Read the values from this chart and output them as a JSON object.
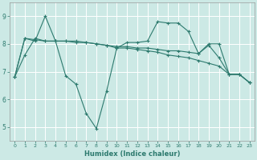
{
  "background_color": "#cce9e5",
  "grid_color": "#ffffff",
  "line_color": "#2d7a6e",
  "xlabel": "Humidex (Indice chaleur)",
  "xlim": [
    -0.5,
    23.5
  ],
  "ylim": [
    4.5,
    9.5
  ],
  "yticks": [
    5,
    6,
    7,
    8,
    9
  ],
  "xticks": [
    0,
    1,
    2,
    3,
    4,
    5,
    6,
    7,
    8,
    9,
    10,
    11,
    12,
    13,
    14,
    15,
    16,
    17,
    18,
    19,
    20,
    21,
    22,
    23
  ],
  "series": [
    [
      6.8,
      7.6,
      8.2,
      8.1,
      8.1,
      6.85,
      6.55,
      5.5,
      4.95,
      6.3,
      7.85,
      8.05,
      8.05,
      8.1,
      8.8,
      8.75,
      8.75,
      8.45,
      7.65,
      7.95,
      7.5,
      6.9,
      6.9,
      6.6
    ],
    [
      6.8,
      8.2,
      8.1,
      9.0,
      8.1,
      8.1,
      8.05,
      8.05,
      8.0,
      7.95,
      7.85,
      7.85,
      7.8,
      7.75,
      7.7,
      7.6,
      7.55,
      7.5,
      7.4,
      7.3,
      7.2,
      6.9,
      6.9,
      6.6
    ],
    [
      6.8,
      8.2,
      8.15,
      8.1,
      8.1,
      8.1,
      8.1,
      8.05,
      8.0,
      7.95,
      7.9,
      7.9,
      7.85,
      7.85,
      7.8,
      7.75,
      7.75,
      7.7,
      7.65,
      8.0,
      8.0,
      6.9,
      6.9,
      6.6
    ]
  ]
}
